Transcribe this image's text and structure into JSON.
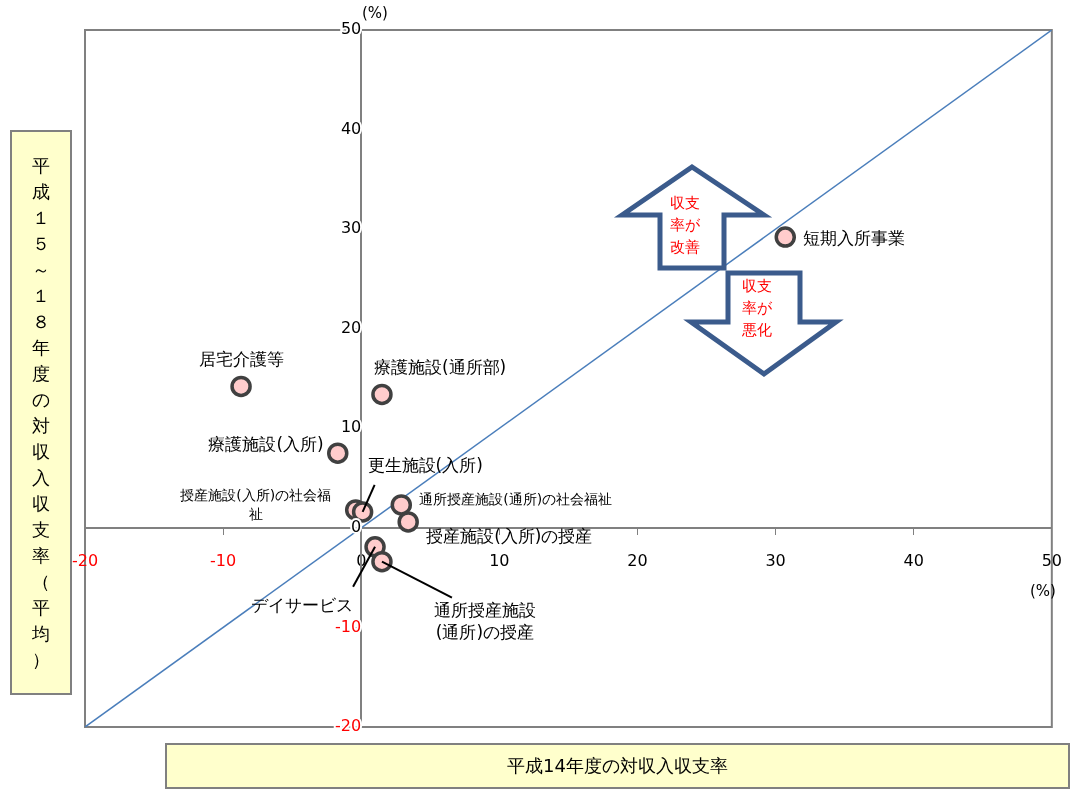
{
  "chart_data": {
    "type": "scatter",
    "xlabel": "平成14年度の対収入収支率",
    "ylabel": "平成１５～１８年度の対収入収支率（平均）",
    "xlim": [
      -20,
      50
    ],
    "ylim": [
      -20,
      50
    ],
    "xticks": [
      -20,
      -10,
      0,
      10,
      20,
      30,
      40,
      50
    ],
    "yticks": [
      -20,
      -10,
      0,
      10,
      20,
      30,
      40,
      50
    ],
    "marker": "circle",
    "series": [
      {
        "type": "scatter",
        "color": "#ffcccc",
        "x": [
          30.7,
          -8.7,
          1.5,
          -1.7,
          -0.4,
          0.1,
          2.9,
          3.4,
          1.0,
          1.5
        ],
        "values": [
          29.2,
          14.2,
          13.4,
          7.5,
          1.8,
          1.6,
          2.3,
          0.6,
          -1.9,
          -3.4
        ]
      },
      {
        "type": "line",
        "color": "#4a7ebb",
        "marker": "none",
        "x": [
          -20,
          50
        ],
        "values": [
          -20,
          50
        ]
      }
    ],
    "annotations": [
      {
        "text": "短期入所事業",
        "x": 30.7,
        "y": 29.2
      },
      {
        "text": "居宅介護等",
        "x": -8.7,
        "y": 14.2
      },
      {
        "text": "療護施設(通所部)",
        "x": 1.5,
        "y": 13.4
      },
      {
        "text": "療護施設(入所)",
        "x": -1.7,
        "y": 7.5
      },
      {
        "text": "授産施設(入所)の社会福祉",
        "x": -0.4,
        "y": 1.8
      },
      {
        "text": "更生施設(入所)",
        "x": 0.1,
        "y": 1.6
      },
      {
        "text": "通所授産施設(通所)の社会福祉",
        "x": 2.9,
        "y": 2.3
      },
      {
        "text": "授産施設(入所)の授産",
        "x": 3.4,
        "y": 0.6
      },
      {
        "text": "デイサービス",
        "x": 1.0,
        "y": -1.9
      },
      {
        "text": "通所授産施設(通所)の授産",
        "x": 1.5,
        "y": -3.4
      },
      "(%)",
      "(%)",
      "収支率が改善",
      "収支率が悪化"
    ]
  }
}
